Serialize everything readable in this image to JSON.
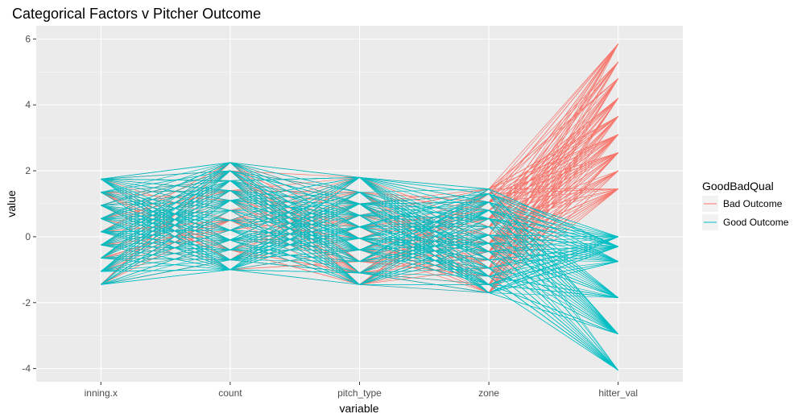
{
  "chart_data": {
    "type": "line",
    "subtype": "parallel-coordinates",
    "title": "Categorical Factors v Pitcher Outcome",
    "xlabel": "variable",
    "ylabel": "value",
    "categories": [
      "inning.x",
      "count",
      "pitch_type",
      "zone",
      "hitter_val"
    ],
    "ylim": [
      -4.4,
      6.4
    ],
    "yticks": [
      -4,
      -2,
      0,
      2,
      4,
      6
    ],
    "grid": true,
    "legend": {
      "title": "GoodBadQual",
      "position": "right",
      "entries": [
        "Bad Outcome",
        "Good Outcome"
      ]
    },
    "colors": {
      "panel": "#ebebeb",
      "grid_major": "#ffffff",
      "Bad Outcome": "#f8766d",
      "Good Outcome": "#00bfc4"
    },
    "axis_levels": {
      "inning.x": [
        -1.45,
        -1.05,
        -0.65,
        -0.25,
        0.15,
        0.55,
        0.95,
        1.35,
        1.75
      ],
      "count": [
        -1.0,
        -0.7,
        -0.4,
        -0.1,
        0.2,
        0.5,
        0.8,
        1.1,
        1.4,
        1.7,
        2.0,
        2.25
      ],
      "pitch_type": [
        -1.45,
        -1.1,
        -0.75,
        -0.4,
        -0.05,
        0.3,
        0.65,
        1.0,
        1.35,
        1.8
      ],
      "zone": [
        -1.7,
        -1.45,
        -1.2,
        -0.95,
        -0.7,
        -0.45,
        -0.2,
        0.05,
        0.3,
        0.55,
        0.8,
        1.05,
        1.3,
        1.45
      ],
      "hitter_val_bad": [
        1.45,
        2.0,
        2.55,
        3.1,
        3.65,
        4.2,
        4.8,
        5.3,
        5.85
      ],
      "hitter_val_good": [
        -4.05,
        -2.95,
        -1.85,
        -0.75,
        -0.3,
        0.0
      ]
    }
  }
}
